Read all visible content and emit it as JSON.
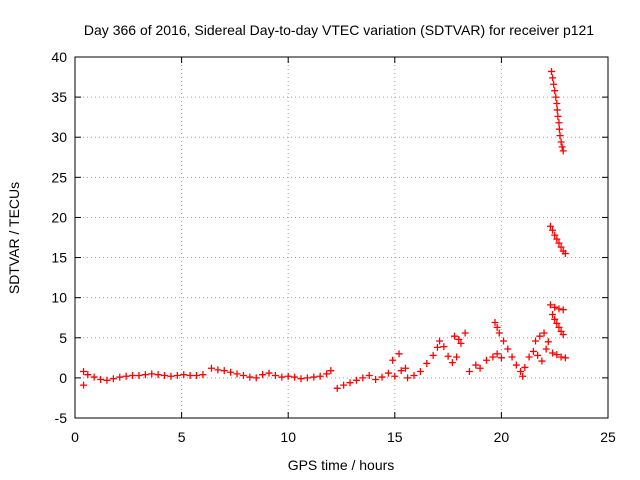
{
  "chart_data": {
    "type": "scatter",
    "title": "Day 366 of 2016, Sidereal Day-to-day VTEC variation (SDTVAR) for receiver p121",
    "xlabel": "GPS time / hours",
    "ylabel": "SDTVAR / TECUs",
    "xlim": [
      0,
      25
    ],
    "ylim": [
      -5,
      40
    ],
    "xticks": [
      0,
      5,
      10,
      15,
      20,
      25
    ],
    "yticks": [
      -5,
      0,
      5,
      10,
      15,
      20,
      25,
      30,
      35,
      40
    ],
    "grid": true,
    "marker": "+",
    "color": "#ff0000",
    "series": [
      {
        "points": [
          [
            0.4,
            -0.9
          ],
          [
            0.4,
            0.8
          ],
          [
            0.6,
            0.4
          ],
          [
            0.9,
            0.1
          ],
          [
            1.2,
            -0.2
          ],
          [
            1.5,
            -0.3
          ],
          [
            1.8,
            -0.1
          ],
          [
            2.1,
            0.1
          ],
          [
            2.4,
            0.2
          ],
          [
            2.7,
            0.3
          ],
          [
            3.0,
            0.3
          ],
          [
            3.3,
            0.4
          ],
          [
            3.6,
            0.5
          ],
          [
            3.9,
            0.4
          ],
          [
            4.2,
            0.3
          ],
          [
            4.5,
            0.2
          ],
          [
            4.8,
            0.3
          ],
          [
            5.1,
            0.4
          ],
          [
            5.4,
            0.3
          ],
          [
            5.7,
            0.3
          ],
          [
            6.0,
            0.4
          ],
          [
            6.4,
            1.2
          ],
          [
            6.7,
            1.0
          ],
          [
            7.0,
            0.9
          ],
          [
            7.3,
            0.7
          ],
          [
            7.6,
            0.5
          ],
          [
            7.9,
            0.3
          ],
          [
            8.2,
            0.1
          ],
          [
            8.5,
            0.0
          ],
          [
            8.8,
            0.4
          ],
          [
            9.1,
            0.6
          ],
          [
            9.4,
            0.3
          ],
          [
            9.7,
            0.1
          ],
          [
            10.0,
            0.2
          ],
          [
            10.3,
            0.1
          ],
          [
            10.6,
            -0.1
          ],
          [
            10.9,
            0.0
          ],
          [
            11.2,
            0.1
          ],
          [
            11.5,
            0.2
          ],
          [
            11.8,
            0.5
          ],
          [
            12.0,
            0.9
          ],
          [
            12.3,
            -1.3
          ],
          [
            12.6,
            -0.9
          ],
          [
            12.9,
            -0.6
          ],
          [
            13.2,
            -0.3
          ],
          [
            13.5,
            0.0
          ],
          [
            13.8,
            0.3
          ],
          [
            14.1,
            -0.2
          ],
          [
            14.4,
            0.1
          ],
          [
            14.7,
            0.6
          ],
          [
            15.0,
            0.2
          ],
          [
            15.3,
            0.9
          ],
          [
            15.5,
            1.2
          ],
          [
            14.9,
            2.2
          ],
          [
            15.2,
            3.0
          ],
          [
            15.6,
            0.0
          ],
          [
            15.9,
            0.3
          ],
          [
            16.2,
            0.8
          ],
          [
            16.5,
            1.8
          ],
          [
            16.8,
            2.8
          ],
          [
            17.0,
            3.8
          ],
          [
            17.1,
            4.6
          ],
          [
            17.3,
            3.9
          ],
          [
            17.5,
            2.7
          ],
          [
            17.7,
            1.9
          ],
          [
            17.9,
            2.6
          ],
          [
            18.1,
            4.3
          ],
          [
            18.3,
            5.6
          ],
          [
            17.8,
            5.2
          ],
          [
            18.0,
            4.8
          ],
          [
            18.5,
            0.8
          ],
          [
            18.8,
            1.6
          ],
          [
            19.0,
            1.2
          ],
          [
            19.3,
            2.2
          ],
          [
            19.6,
            2.6
          ],
          [
            19.8,
            3.0
          ],
          [
            20.0,
            2.5
          ],
          [
            19.7,
            6.9
          ],
          [
            19.8,
            6.3
          ],
          [
            19.9,
            5.6
          ],
          [
            20.1,
            4.6
          ],
          [
            20.3,
            3.6
          ],
          [
            20.5,
            2.6
          ],
          [
            20.7,
            1.6
          ],
          [
            20.9,
            0.8
          ],
          [
            21.0,
            0.2
          ],
          [
            21.1,
            1.3
          ],
          [
            21.3,
            2.6
          ],
          [
            21.5,
            3.3
          ],
          [
            21.7,
            2.8
          ],
          [
            21.9,
            2.1
          ],
          [
            22.1,
            3.6
          ],
          [
            22.2,
            4.5
          ],
          [
            21.6,
            4.6
          ],
          [
            21.8,
            5.2
          ],
          [
            22.0,
            5.6
          ],
          [
            22.3,
            9.1
          ],
          [
            22.5,
            8.8
          ],
          [
            22.7,
            8.6
          ],
          [
            22.9,
            8.5
          ],
          [
            22.4,
            7.9
          ],
          [
            22.5,
            7.3
          ],
          [
            22.6,
            6.8
          ],
          [
            22.7,
            6.3
          ],
          [
            22.8,
            5.8
          ],
          [
            22.9,
            5.4
          ],
          [
            22.4,
            3.1
          ],
          [
            22.6,
            2.9
          ],
          [
            22.8,
            2.6
          ],
          [
            23.0,
            2.5
          ],
          [
            22.3,
            18.9
          ],
          [
            22.4,
            18.4
          ],
          [
            22.5,
            17.8
          ],
          [
            22.6,
            17.3
          ],
          [
            22.7,
            16.8
          ],
          [
            22.8,
            16.3
          ],
          [
            22.9,
            15.8
          ],
          [
            23.0,
            15.5
          ],
          [
            22.35,
            38.2
          ],
          [
            22.4,
            37.4
          ],
          [
            22.45,
            36.6
          ],
          [
            22.5,
            35.8
          ],
          [
            22.55,
            35.0
          ],
          [
            22.6,
            34.2
          ],
          [
            22.62,
            33.4
          ],
          [
            22.65,
            32.6
          ],
          [
            22.7,
            31.8
          ],
          [
            22.72,
            31.0
          ],
          [
            22.75,
            30.2
          ],
          [
            22.8,
            29.4
          ],
          [
            22.85,
            28.8
          ],
          [
            22.9,
            28.3
          ]
        ]
      }
    ]
  }
}
